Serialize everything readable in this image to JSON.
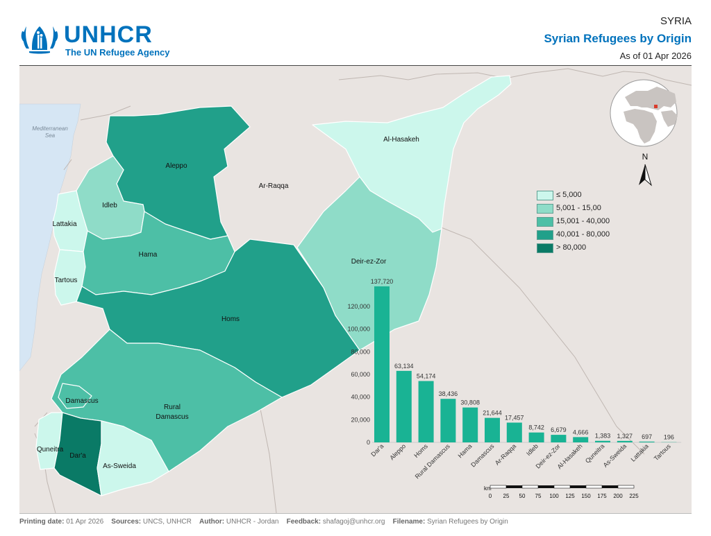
{
  "header": {
    "brand_name": "UNHCR",
    "brand_tagline": "The UN Refugee Agency",
    "country": "SYRIA",
    "title": "Syrian Refugees by Origin",
    "as_of": "As of 01 Apr 2026"
  },
  "map": {
    "sea_label_1": "Mediterranean",
    "sea_label_2": "Sea",
    "north_label": "N",
    "scale_unit": "km",
    "scale_ticks": [
      "0",
      "25",
      "50",
      "75",
      "100",
      "125",
      "150",
      "175",
      "200",
      "225"
    ],
    "regions": {
      "aleppo": "Aleppo",
      "ar_raqqa": "Ar-Raqqa",
      "al_hasakeh": "Al-Hasakeh",
      "idleb": "Idleb",
      "lattakia": "Lattakia",
      "tartous": "Tartous",
      "hama": "Hama",
      "homs": "Homs",
      "deir_ez_zor": "Deir-ez-Zor",
      "damascus": "Damascus",
      "rural_damascus_1": "Rural",
      "rural_damascus_2": "Damascus",
      "quneitra": "Quneitra",
      "dara": "Dar'a",
      "as_sweida": "As-Sweida"
    }
  },
  "legend": {
    "items": [
      {
        "label": "≤ 5,000",
        "color": "#ccf7ec"
      },
      {
        "label": "5,001 - 15,00",
        "color": "#8fdcc8"
      },
      {
        "label": "15,001 - 40,000",
        "color": "#4dbfa6"
      },
      {
        "label": "40,001 - 80,000",
        "color": "#21a08a"
      },
      {
        "label": "> 80,000",
        "color": "#0a7a66"
      }
    ]
  },
  "colors": {
    "bar": "#19b394",
    "brand_blue": "#0072bc",
    "land": "#e9e4e1",
    "sea": "#d6e6f4"
  },
  "chart_data": {
    "type": "bar",
    "categories": [
      "Dar'a",
      "Aleppo",
      "Homs",
      "Rural Damascus",
      "Hama",
      "Damascus",
      "Ar-Raqqa",
      "Idleb",
      "Deir-ez-Zor",
      "Al-Hasakeh",
      "Quneitra",
      "As-Sweida",
      "Lattakia",
      "Tartous"
    ],
    "values": [
      137720,
      63134,
      54174,
      38436,
      30808,
      21644,
      17457,
      8742,
      6679,
      4666,
      1383,
      1327,
      697,
      196
    ],
    "value_labels": [
      "137,720",
      "63,134",
      "54,174",
      "38,436",
      "30,808",
      "21,644",
      "17,457",
      "8,742",
      "6,679",
      "4,666",
      "1,383",
      "1,327",
      "697",
      "196"
    ],
    "yticks": [
      0,
      20000,
      40000,
      60000,
      80000,
      100000,
      120000
    ],
    "ytick_labels": [
      "0",
      "20,000",
      "40,000",
      "60,000",
      "80,000",
      "100,000",
      "120,000"
    ],
    "ylim": [
      0,
      140000
    ],
    "grid": false
  },
  "footer": {
    "printing_label": "Printing date:",
    "printing_value": "01 Apr 2026",
    "sources_label": "Sources:",
    "sources_value": "UNCS, UNHCR",
    "author_label": "Author:",
    "author_value": "UNHCR - Jordan",
    "feedback_label": "Feedback:",
    "feedback_value": "shafagoj@unhcr.org",
    "filename_label": "Filename:",
    "filename_value": "Syrian Refugees by Origin"
  }
}
